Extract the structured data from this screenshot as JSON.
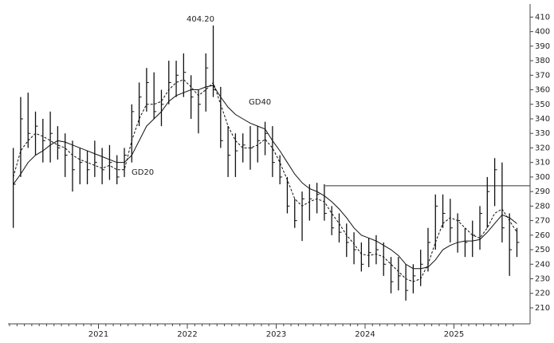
{
  "chart_data": {
    "type": "ohlc",
    "categories": [
      null,
      null,
      null,
      null,
      null,
      null,
      null,
      null,
      null,
      null,
      null,
      null,
      "2021",
      null,
      null,
      null,
      null,
      null,
      null,
      null,
      null,
      null,
      null,
      null,
      "2022",
      null,
      null,
      null,
      null,
      null,
      null,
      null,
      null,
      null,
      null,
      null,
      "2023",
      null,
      null,
      null,
      null,
      null,
      null,
      null,
      null,
      null,
      null,
      null,
      "2024",
      null,
      null,
      null,
      null,
      null,
      null,
      null,
      null,
      null,
      null,
      null,
      "2025",
      null,
      null,
      null,
      null,
      null,
      null,
      null,
      null
    ],
    "high": [
      320,
      355,
      358,
      345,
      340,
      345,
      335,
      330,
      325,
      320,
      318,
      325,
      320,
      322,
      315,
      320,
      350,
      365,
      375,
      372,
      360,
      380,
      380,
      385,
      370,
      360,
      385,
      404.2,
      362,
      335,
      330,
      330,
      335,
      335,
      338,
      335,
      315,
      300,
      285,
      290,
      295,
      296,
      295,
      280,
      275,
      268,
      262,
      255,
      258,
      260,
      255,
      245,
      245,
      240,
      240,
      250,
      265,
      288,
      288,
      285,
      275,
      265,
      270,
      280,
      300,
      313,
      310,
      275,
      265
    ],
    "low": [
      265,
      300,
      320,
      315,
      310,
      310,
      312,
      300,
      290,
      295,
      295,
      300,
      295,
      298,
      295,
      300,
      310,
      335,
      345,
      340,
      335,
      350,
      355,
      355,
      340,
      330,
      345,
      355,
      320,
      300,
      300,
      310,
      305,
      310,
      315,
      300,
      295,
      275,
      265,
      256,
      270,
      275,
      270,
      260,
      255,
      245,
      240,
      235,
      238,
      240,
      232,
      220,
      222,
      215,
      220,
      225,
      235,
      250,
      265,
      255,
      248,
      245,
      245,
      250,
      265,
      280,
      255,
      232,
      245
    ],
    "close": [
      295,
      340,
      330,
      335,
      325,
      330,
      320,
      315,
      305,
      310,
      305,
      310,
      305,
      310,
      300,
      315,
      345,
      355,
      365,
      345,
      350,
      365,
      370,
      372,
      355,
      350,
      375,
      360,
      325,
      315,
      318,
      322,
      320,
      325,
      330,
      310,
      300,
      280,
      270,
      285,
      285,
      288,
      275,
      265,
      262,
      255,
      250,
      240,
      248,
      250,
      240,
      228,
      232,
      222,
      232,
      240,
      255,
      280,
      275,
      265,
      270,
      255,
      260,
      275,
      290,
      305,
      265,
      250,
      255
    ],
    "series": [
      {
        "name": "GD20",
        "dashed": true,
        "values": [
          300,
          318,
          325,
          330,
          328,
          325,
          322,
          320,
          315,
          312,
          310,
          308,
          306,
          308,
          305,
          305,
          325,
          340,
          350,
          350,
          352,
          360,
          365,
          367,
          362,
          356,
          360,
          365,
          350,
          335,
          325,
          320,
          320,
          322,
          326,
          320,
          310,
          298,
          285,
          280,
          283,
          285,
          283,
          275,
          268,
          260,
          254,
          247,
          246,
          247,
          245,
          240,
          235,
          230,
          228,
          230,
          240,
          255,
          268,
          272,
          270,
          265,
          260,
          258,
          265,
          275,
          278,
          270,
          262
        ]
      },
      {
        "name": "GD40",
        "dashed": false,
        "values": [
          295,
          302,
          310,
          315,
          318,
          322,
          325,
          324,
          322,
          320,
          318,
          316,
          314,
          312,
          310,
          310,
          315,
          325,
          335,
          340,
          345,
          352,
          356,
          358,
          360,
          360,
          362,
          363,
          355,
          348,
          343,
          340,
          337,
          335,
          333,
          325,
          318,
          310,
          302,
          296,
          292,
          290,
          287,
          283,
          278,
          272,
          265,
          260,
          258,
          256,
          253,
          250,
          246,
          240,
          237,
          237,
          238,
          243,
          250,
          253,
          255,
          256,
          256,
          257,
          262,
          268,
          274,
          272,
          268
        ]
      }
    ],
    "annotations": [
      {
        "text": "404.20",
        "value": 404.2
      }
    ],
    "hline": 294,
    "ylim": [
      199,
      419
    ],
    "yticks": [
      210,
      220,
      230,
      240,
      250,
      260,
      270,
      280,
      290,
      300,
      310,
      320,
      330,
      340,
      350,
      360,
      370,
      380,
      390,
      400,
      410
    ]
  }
}
